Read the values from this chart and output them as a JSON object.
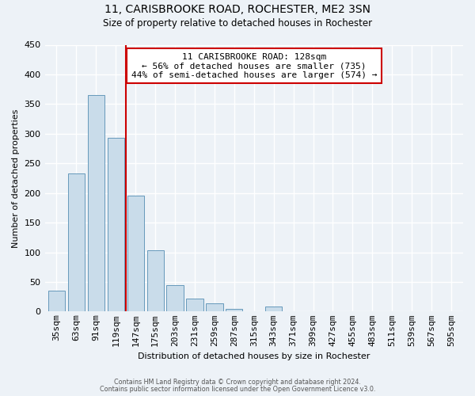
{
  "title": "11, CARISBROOKE ROAD, ROCHESTER, ME2 3SN",
  "subtitle": "Size of property relative to detached houses in Rochester",
  "xlabel": "Distribution of detached houses by size in Rochester",
  "ylabel": "Number of detached properties",
  "bar_color": "#c9dcea",
  "bar_edge_color": "#6699bb",
  "categories": [
    "35sqm",
    "63sqm",
    "91sqm",
    "119sqm",
    "147sqm",
    "175sqm",
    "203sqm",
    "231sqm",
    "259sqm",
    "287sqm",
    "315sqm",
    "343sqm",
    "371sqm",
    "399sqm",
    "427sqm",
    "455sqm",
    "483sqm",
    "511sqm",
    "539sqm",
    "567sqm",
    "595sqm"
  ],
  "values": [
    35,
    233,
    365,
    293,
    196,
    103,
    44,
    22,
    14,
    4,
    0,
    9,
    1,
    0,
    0,
    0,
    0,
    0,
    0,
    0,
    1
  ],
  "ylim": [
    0,
    450
  ],
  "yticks": [
    0,
    50,
    100,
    150,
    200,
    250,
    300,
    350,
    400,
    450
  ],
  "property_line_x": 3.5,
  "property_line_color": "#cc0000",
  "annotation_title": "11 CARISBROOKE ROAD: 128sqm",
  "annotation_line1": "← 56% of detached houses are smaller (735)",
  "annotation_line2": "44% of semi-detached houses are larger (574) →",
  "annotation_box_color": "#ffffff",
  "annotation_box_edge": "#cc0000",
  "footer_line1": "Contains HM Land Registry data © Crown copyright and database right 2024.",
  "footer_line2": "Contains public sector information licensed under the Open Government Licence v3.0.",
  "background_color": "#edf2f7"
}
